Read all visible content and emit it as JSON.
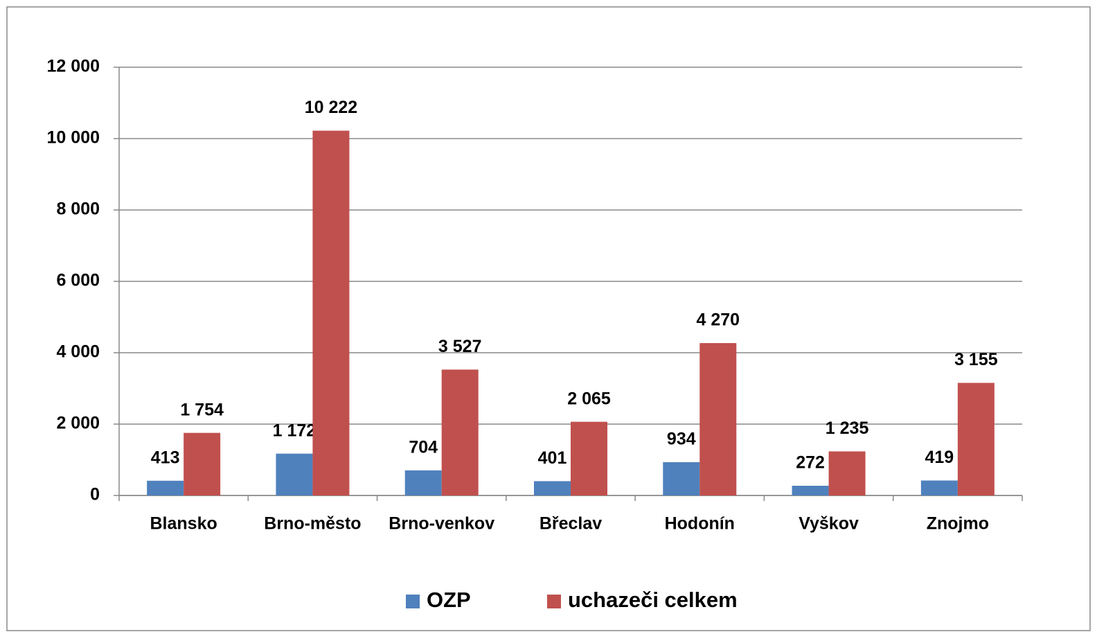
{
  "chart_data": {
    "type": "bar",
    "categories": [
      "Blansko",
      "Brno-město",
      "Brno-venkov",
      "Břeclav",
      "Hodonín",
      "Vyškov",
      "Znojmo"
    ],
    "series": [
      {
        "name": "OZP",
        "color": "#4f81bd",
        "values": [
          413,
          1172,
          704,
          401,
          934,
          272,
          419
        ],
        "value_labels": [
          "413",
          "1 172",
          "704",
          "401",
          "934",
          "272",
          "419"
        ]
      },
      {
        "name": "uchazeči celkem",
        "color": "#c0504d",
        "values": [
          1754,
          10222,
          3527,
          2065,
          4270,
          1235,
          3155
        ],
        "value_labels": [
          "1 754",
          "10 222",
          "3 527",
          "2 065",
          "4 270",
          "1 235",
          "3 155"
        ]
      }
    ],
    "ylim": [
      0,
      12000
    ],
    "yticks": [
      0,
      {
        "value": 2000,
        "label": "2 000"
      },
      {
        "value": 4000,
        "label": "4 000"
      },
      {
        "value": 6000,
        "label": "6 000"
      },
      {
        "value": 8000,
        "label": "8 000"
      },
      {
        "value": 10000,
        "label": "10 000"
      },
      {
        "value": 12000,
        "label": "12 000"
      }
    ],
    "grid": true,
    "legend": "bottom"
  }
}
